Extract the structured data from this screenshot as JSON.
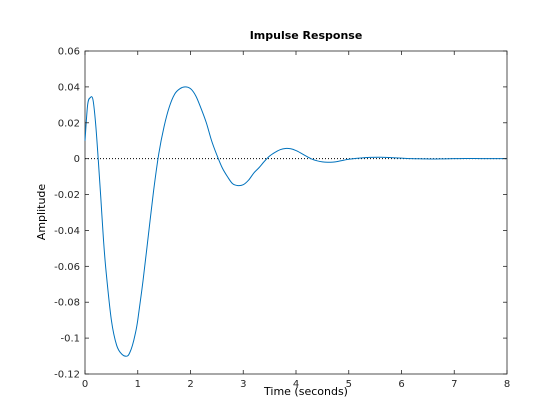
{
  "chart_data": {
    "type": "line",
    "title": "Impulse Response",
    "xlabel": "Time (seconds)",
    "ylabel": "Amplitude",
    "xlim": [
      0,
      8
    ],
    "ylim": [
      -0.12,
      0.06
    ],
    "x_ticks": [
      0,
      1,
      2,
      3,
      4,
      5,
      6,
      7,
      8
    ],
    "x_tick_labels": [
      "0",
      "1",
      "2",
      "3",
      "4",
      "5",
      "6",
      "7",
      "8"
    ],
    "y_ticks": [
      -0.12,
      -0.1,
      -0.08,
      -0.06,
      -0.04,
      -0.02,
      0,
      0.02,
      0.04,
      0.06
    ],
    "y_tick_labels": [
      "-0.12",
      "-0.1",
      "-0.08",
      "-0.06",
      "-0.04",
      "-0.02",
      "0",
      "0.02",
      "0.04",
      "0.06"
    ],
    "grid": false,
    "zero_line": {
      "y": 0,
      "style": "dotted",
      "color": "#000000"
    },
    "series": [
      {
        "color": "#0072BD",
        "x": [
          0,
          0.05,
          0.1,
          0.15,
          0.2,
          0.25,
          0.3,
          0.35,
          0.4,
          0.5,
          0.6,
          0.7,
          0.8,
          0.85,
          0.9,
          0.95,
          1.0,
          1.1,
          1.2,
          1.3,
          1.4,
          1.5,
          1.6,
          1.7,
          1.8,
          1.9,
          2.0,
          2.1,
          2.2,
          2.3,
          2.4,
          2.5,
          2.6,
          2.7,
          2.8,
          2.9,
          3.0,
          3.1,
          3.2,
          3.3,
          3.4,
          3.5,
          3.6,
          3.7,
          3.8,
          3.9,
          4.0,
          4.1,
          4.2,
          4.3,
          4.4,
          4.5,
          4.6,
          4.7,
          4.8,
          4.9,
          5.0,
          5.2,
          5.4,
          5.6,
          5.8,
          6.0,
          6.2,
          6.4,
          6.6,
          6.8,
          7.0,
          7.2,
          7.4,
          7.6,
          7.8,
          8.0
        ],
        "y": [
          0.01,
          0.03,
          0.034,
          0.033,
          0.02,
          0.0,
          -0.022,
          -0.045,
          -0.063,
          -0.09,
          -0.104,
          -0.109,
          -0.11,
          -0.108,
          -0.104,
          -0.098,
          -0.09,
          -0.068,
          -0.043,
          -0.018,
          0.003,
          0.018,
          0.029,
          0.036,
          0.039,
          0.04,
          0.039,
          0.035,
          0.028,
          0.02,
          0.01,
          0.002,
          -0.005,
          -0.01,
          -0.014,
          -0.015,
          -0.0145,
          -0.012,
          -0.008,
          -0.005,
          -0.0015,
          0.0015,
          0.0035,
          0.005,
          0.0057,
          0.0055,
          0.0045,
          0.003,
          0.0013,
          -0.0002,
          -0.0012,
          -0.0018,
          -0.002,
          -0.0019,
          -0.0015,
          -0.0009,
          -0.0003,
          0.0003,
          0.0007,
          0.0008,
          0.0006,
          0.0003,
          0.0,
          -0.0001,
          -0.0002,
          -0.0001,
          0.0,
          0.0001,
          0.0001,
          0.0,
          0.0,
          0.0
        ]
      }
    ]
  }
}
